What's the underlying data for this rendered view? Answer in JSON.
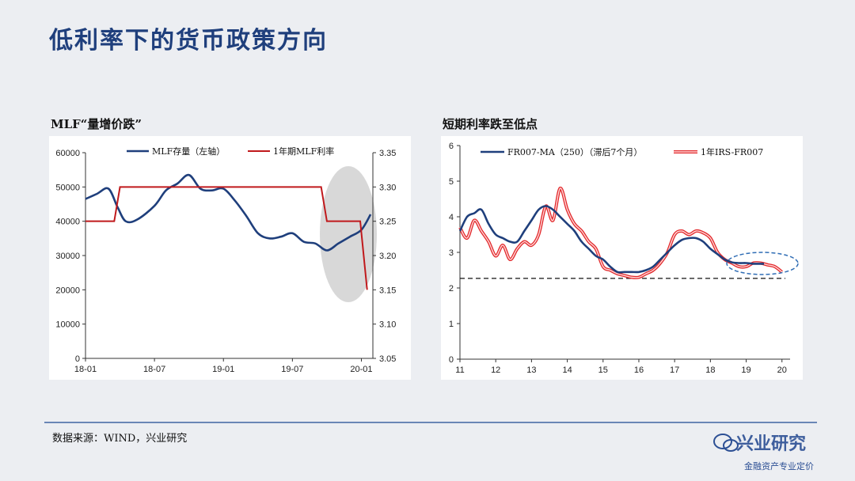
{
  "slide": {
    "title": "低利率下的货币政策方向",
    "source": "数据来源：WIND，兴业研究",
    "watermark": "兴业研究",
    "watermark_sub": "金融资产专业定价"
  },
  "chart_data": [
    {
      "type": "line",
      "title": "MLF“量增价跌”",
      "x_ticks": [
        "18-01",
        "18-07",
        "19-01",
        "19-07",
        "20-01"
      ],
      "y_left": {
        "ticks": [
          0,
          10000,
          20000,
          30000,
          40000,
          50000,
          60000
        ],
        "lim": [
          0,
          60000
        ]
      },
      "y_right": {
        "ticks": [
          3.05,
          3.1,
          3.15,
          3.2,
          3.25,
          3.3,
          3.35
        ],
        "lim": [
          3.05,
          3.35
        ]
      },
      "legend_position": "top",
      "series": [
        {
          "name": "MLF存量（左轴）",
          "axis": "left",
          "color": "#1f3f7c",
          "x": [
            0,
            1,
            2,
            2.8,
            3.5,
            4.5,
            6,
            7,
            8,
            9,
            10,
            11,
            12,
            13,
            14,
            15,
            16,
            17,
            18,
            19,
            20,
            21,
            22,
            23,
            24,
            24.8
          ],
          "values": [
            46500,
            48000,
            49500,
            44000,
            40000,
            40500,
            44500,
            49000,
            51000,
            53500,
            49500,
            49000,
            49500,
            46000,
            41500,
            36500,
            35000,
            35500,
            36500,
            34000,
            33500,
            31500,
            33500,
            35500,
            37500,
            42000
          ]
        },
        {
          "name": "1年期MLF利率",
          "axis": "right",
          "color": "#c0191c",
          "x": [
            0,
            2.5,
            3,
            20.5,
            21,
            23.9,
            24.5
          ],
          "values": [
            3.25,
            3.25,
            3.3,
            3.3,
            3.25,
            3.25,
            3.15
          ]
        }
      ],
      "annotations": [
        {
          "type": "ellipse",
          "fill": "#d8d8d8"
        }
      ]
    },
    {
      "type": "line",
      "title": "短期利率跌至低点",
      "x_ticks": [
        "11",
        "12",
        "13",
        "14",
        "15",
        "16",
        "17",
        "18",
        "19",
        "20"
      ],
      "y": {
        "ticks": [
          0,
          1,
          2,
          3,
          4,
          5,
          6
        ],
        "lim": [
          0,
          6
        ]
      },
      "legend_position": "top",
      "reference_line": 2.27,
      "series": [
        {
          "name": "FR007-MA（250）（滞后7个月）",
          "color": "#1f3f7c",
          "x": [
            11,
            11.2,
            11.4,
            11.6,
            11.8,
            12.0,
            12.2,
            12.4,
            12.6,
            12.8,
            13.0,
            13.2,
            13.4,
            13.6,
            13.8,
            14.0,
            14.2,
            14.4,
            14.6,
            14.8,
            15.0,
            15.2,
            15.4,
            15.6,
            15.8,
            16.0,
            16.2,
            16.4,
            16.6,
            16.8,
            17.0,
            17.2,
            17.4,
            17.6,
            17.8,
            18.0,
            18.2,
            18.4,
            18.6,
            18.8,
            19.0,
            19.2,
            19.4,
            19.5
          ],
          "values": [
            3.6,
            4.0,
            4.1,
            4.2,
            3.8,
            3.5,
            3.4,
            3.3,
            3.3,
            3.6,
            3.9,
            4.2,
            4.3,
            4.2,
            4.0,
            3.8,
            3.6,
            3.3,
            3.1,
            2.9,
            2.8,
            2.6,
            2.45,
            2.45,
            2.45,
            2.45,
            2.5,
            2.6,
            2.8,
            3.0,
            3.2,
            3.35,
            3.4,
            3.4,
            3.3,
            3.1,
            2.95,
            2.8,
            2.72,
            2.7,
            2.7,
            2.68,
            2.68,
            2.68
          ]
        },
        {
          "name": "1年IRS-FR007",
          "color": "#e2282b",
          "x": [
            11,
            11.2,
            11.4,
            11.6,
            11.8,
            12.0,
            12.2,
            12.4,
            12.6,
            12.8,
            13.0,
            13.2,
            13.4,
            13.6,
            13.8,
            14.0,
            14.2,
            14.4,
            14.6,
            14.8,
            15.0,
            15.2,
            15.4,
            15.6,
            15.8,
            16.0,
            16.2,
            16.4,
            16.6,
            16.8,
            17.0,
            17.2,
            17.4,
            17.6,
            17.8,
            18.0,
            18.2,
            18.4,
            18.6,
            18.8,
            19.0,
            19.2,
            19.4,
            19.6,
            19.8,
            20.0
          ],
          "values": [
            3.7,
            3.4,
            3.9,
            3.6,
            3.3,
            2.9,
            3.2,
            2.8,
            3.1,
            3.3,
            3.2,
            3.5,
            4.3,
            3.9,
            4.8,
            4.2,
            3.8,
            3.6,
            3.3,
            3.1,
            2.6,
            2.5,
            2.4,
            2.35,
            2.3,
            2.3,
            2.4,
            2.5,
            2.7,
            3.0,
            3.5,
            3.6,
            3.5,
            3.6,
            3.55,
            3.4,
            3.0,
            2.8,
            2.7,
            2.6,
            2.6,
            2.7,
            2.7,
            2.65,
            2.6,
            2.45
          ]
        }
      ],
      "annotations": [
        {
          "type": "dashed-ellipse",
          "color": "#2f6db5"
        }
      ]
    }
  ]
}
